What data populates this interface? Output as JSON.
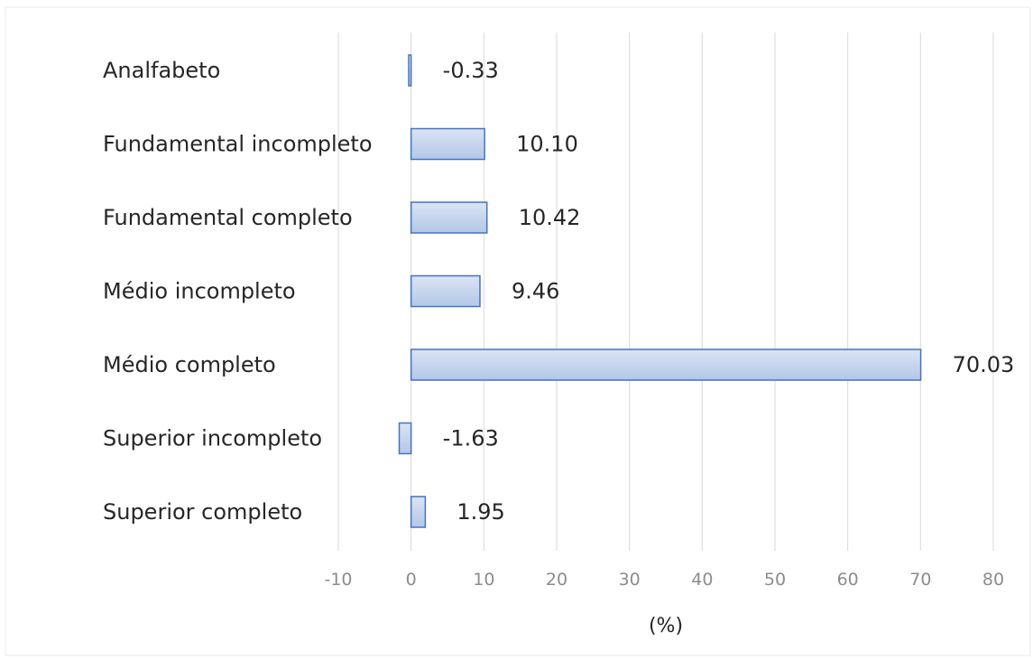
{
  "chart_data": {
    "type": "bar",
    "orientation": "horizontal",
    "categories": [
      "Analfabeto",
      "Fundamental incompleto",
      "Fundamental completo",
      "Médio incompleto",
      "Médio completo",
      "Superior incompleto",
      "Superior completo"
    ],
    "values": [
      -0.33,
      10.1,
      10.42,
      9.46,
      70.03,
      -1.63,
      1.95
    ],
    "data_labels": [
      "-0.33",
      "10.10",
      "10.42",
      "9.46",
      "70.03",
      "-1.63",
      "1.95"
    ],
    "xlabel": "(%)",
    "xlim": [
      -10,
      80
    ],
    "xticks": [
      -10,
      0,
      10,
      20,
      30,
      40,
      50,
      60,
      70,
      80
    ],
    "xtick_labels": [
      "-10",
      "0",
      "10",
      "20",
      "30",
      "40",
      "50",
      "60",
      "70",
      "80"
    ],
    "grid": "vertical",
    "legend": "none",
    "colors": {
      "bar_fill_top": "#dae4f3",
      "bar_fill_bottom": "#b4c7e7",
      "bar_stroke": "#4472c4",
      "grid": "#d9d9d9",
      "tick_text": "#8c8c8c",
      "label_text": "#262626"
    }
  }
}
